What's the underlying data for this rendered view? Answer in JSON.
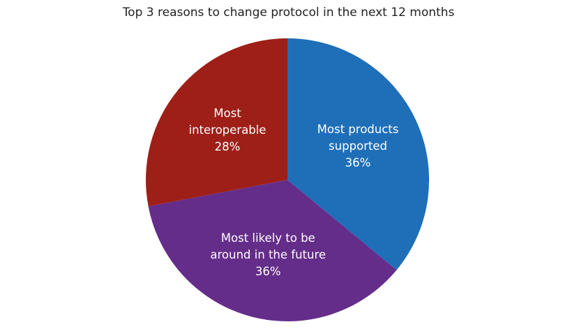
{
  "chart_data": {
    "type": "pie",
    "title": "Top 3 reasons to change protocol in the next 12 months",
    "categories": [
      "Most products supported",
      "Most likely to be around in the future",
      "Most interoperable"
    ],
    "values": [
      36,
      36,
      28
    ],
    "value_labels": [
      "36%",
      "36%",
      "28%"
    ],
    "colors": [
      "#1f6fb8",
      "#652d8a",
      "#9e1f18"
    ]
  }
}
